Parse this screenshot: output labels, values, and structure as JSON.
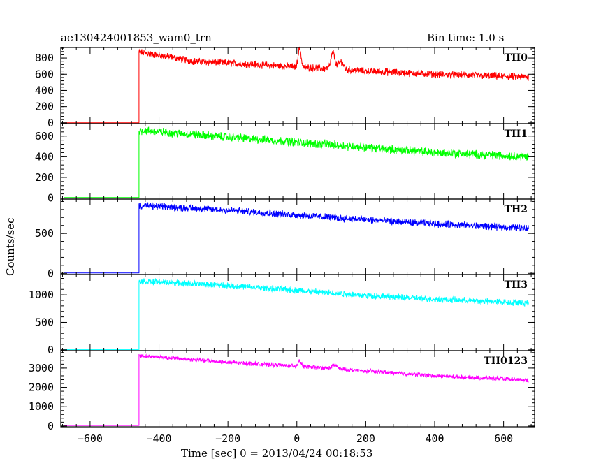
{
  "header": {
    "title": "ae130424001853_wam0_trn",
    "bin_time": "Bin time: 1.0 s"
  },
  "chart_data": {
    "type": "line",
    "xlabel": "Time [sec] 0 = 2013/04/24 00:18:53",
    "ylabel": "Counts/sec",
    "xlim": [
      -685,
      690
    ],
    "x_ticks": [
      -600,
      -400,
      -200,
      0,
      200,
      400,
      600
    ],
    "x_tick_labels": [
      "−600",
      "−400",
      "−200",
      "0",
      "200",
      "400",
      "600"
    ],
    "panels": [
      {
        "name": "TH0",
        "color": "#ff0000",
        "ylim": [
          -10,
          930
        ],
        "ticks": [
          0,
          200,
          400,
          600,
          800
        ],
        "tick_labels": [
          "0",
          "200",
          "400",
          "600",
          "800"
        ],
        "baseline": 0,
        "data_start": -675,
        "rise_time": -458,
        "data_end": 673,
        "trend": [
          [
            -458,
            875
          ],
          [
            -300,
            760
          ],
          [
            -100,
            715
          ],
          [
            0,
            690
          ],
          [
            200,
            640
          ],
          [
            400,
            600
          ],
          [
            673,
            565
          ]
        ],
        "noise": 70,
        "peaks": [
          {
            "t": 8,
            "h": 235,
            "w": 6
          },
          {
            "t": 105,
            "h": 200,
            "w": 8
          },
          {
            "t": 128,
            "h": 95,
            "w": 10
          }
        ]
      },
      {
        "name": "TH1",
        "color": "#00ff00",
        "ylim": [
          -10,
          720
        ],
        "ticks": [
          0,
          200,
          400,
          600
        ],
        "tick_labels": [
          "0",
          "200",
          "400",
          "600"
        ],
        "baseline": 5,
        "data_start": -675,
        "rise_time": -458,
        "data_end": 673,
        "trend": [
          [
            -458,
            655
          ],
          [
            -200,
            590
          ],
          [
            0,
            540
          ],
          [
            200,
            490
          ],
          [
            400,
            440
          ],
          [
            673,
            400
          ]
        ],
        "noise": 65,
        "peaks": []
      },
      {
        "name": "TH2",
        "color": "#0000ff",
        "ylim": [
          -15,
          930
        ],
        "ticks": [
          0,
          500
        ],
        "tick_labels": [
          "0",
          "500"
        ],
        "baseline": 5,
        "data_start": -675,
        "rise_time": -458,
        "data_end": 673,
        "trend": [
          [
            -458,
            850
          ],
          [
            -200,
            790
          ],
          [
            0,
            730
          ],
          [
            200,
            670
          ],
          [
            400,
            620
          ],
          [
            673,
            565
          ]
        ],
        "noise": 70,
        "peaks": []
      },
      {
        "name": "TH3",
        "color": "#00ffff",
        "ylim": [
          -15,
          1370
        ],
        "ticks": [
          0,
          500,
          1000
        ],
        "tick_labels": [
          "0",
          "500",
          "1000"
        ],
        "baseline": 5,
        "data_start": -675,
        "rise_time": -458,
        "data_end": 673,
        "trend": [
          [
            -458,
            1250
          ],
          [
            -200,
            1170
          ],
          [
            0,
            1080
          ],
          [
            200,
            990
          ],
          [
            400,
            920
          ],
          [
            673,
            850
          ]
        ],
        "noise": 90,
        "peaks": []
      },
      {
        "name": "TH0123",
        "color": "#ff00ff",
        "ylim": [
          -40,
          3900
        ],
        "ticks": [
          0,
          1000,
          2000,
          3000
        ],
        "tick_labels": [
          "0",
          "1000",
          "2000",
          "3000"
        ],
        "baseline": 30,
        "data_start": -675,
        "rise_time": -458,
        "data_end": 673,
        "trend": [
          [
            -458,
            3650
          ],
          [
            -200,
            3300
          ],
          [
            0,
            3100
          ],
          [
            200,
            2850
          ],
          [
            400,
            2600
          ],
          [
            673,
            2380
          ]
        ],
        "noise": 170,
        "peaks": [
          {
            "t": 8,
            "h": 300,
            "w": 6
          },
          {
            "t": 110,
            "h": 200,
            "w": 10
          }
        ]
      }
    ]
  }
}
